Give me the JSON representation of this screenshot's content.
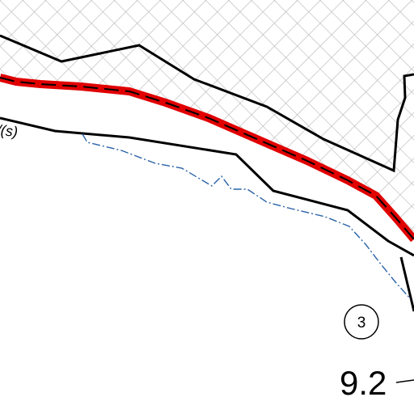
{
  "map": {
    "labels": {
      "road_label_partial": "/(s)",
      "circle_number": "3",
      "kilometer_marker": "9.2"
    },
    "colors": {
      "background": "#ffffff",
      "hatch": "#b8b8b8",
      "boundary": "#000000",
      "route_casing": "#e00000",
      "route_center": "#000000",
      "stream": "#2a62a8"
    }
  }
}
